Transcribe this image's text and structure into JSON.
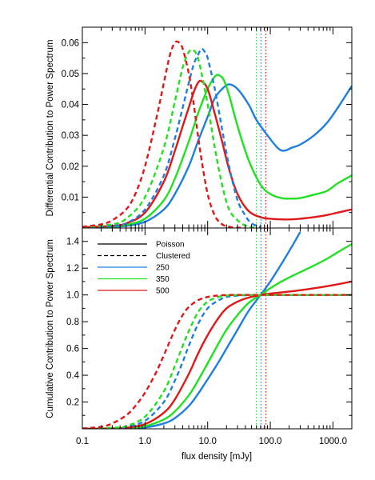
{
  "figure": {
    "xlabel": "flux density [mJy]",
    "xscale": "log",
    "xlim": [
      0.1,
      2000
    ],
    "x_ticks": [
      {
        "value": 0.1,
        "label": "0.1"
      },
      {
        "value": 1,
        "label": "1.0"
      },
      {
        "value": 10,
        "label": "10.0"
      },
      {
        "value": 100,
        "label": "100.0"
      },
      {
        "value": 1000,
        "label": "1000.0"
      }
    ],
    "vertical_lines": [
      {
        "x": 60,
        "color": "#22e022",
        "style": "dotted"
      },
      {
        "x": 71,
        "color": "#1f7fe0",
        "style": "dotted"
      },
      {
        "x": 85,
        "color": "#e01818",
        "style": "dotted"
      }
    ],
    "legend": {
      "placement": "upper-left",
      "entries": [
        {
          "label": "Poisson",
          "color": "#000000",
          "style": "solid"
        },
        {
          "label": "Clustered",
          "color": "#000000",
          "style": "dashed"
        },
        {
          "label": "250",
          "color": "#1f7fe0",
          "style": "solid"
        },
        {
          "label": "350",
          "color": "#22e022",
          "style": "solid"
        },
        {
          "label": "500",
          "color": "#e01818",
          "style": "solid"
        }
      ]
    }
  },
  "chart_data": [
    {
      "type": "line",
      "panel": "top",
      "ylabel": "Differential Contribution to Power Spectrum",
      "ylim": [
        0,
        0.065
      ],
      "y_ticks": [
        {
          "value": 0.01,
          "label": "0.01"
        },
        {
          "value": 0.02,
          "label": "0.02"
        },
        {
          "value": 0.03,
          "label": "0.03"
        },
        {
          "value": 0.04,
          "label": "0.04"
        },
        {
          "value": 0.05,
          "label": "0.05"
        },
        {
          "value": 0.06,
          "label": "0.06"
        }
      ],
      "series": [
        {
          "name": "250",
          "kind": "Poisson",
          "color": "#1f7fe0",
          "style": "solid",
          "x": [
            0.1,
            0.3,
            0.5,
            1,
            2,
            3,
            5,
            7,
            10,
            13,
            17,
            22,
            30,
            45,
            60,
            90,
            130,
            165,
            220,
            300,
            500,
            800,
            1200,
            2000
          ],
          "y": [
            0.0002,
            0.0004,
            0.0007,
            0.002,
            0.006,
            0.011,
            0.02,
            0.028,
            0.036,
            0.042,
            0.045,
            0.0465,
            0.045,
            0.04,
            0.035,
            0.03,
            0.026,
            0.025,
            0.026,
            0.027,
            0.03,
            0.034,
            0.039,
            0.046
          ]
        },
        {
          "name": "350",
          "kind": "Poisson",
          "color": "#22e022",
          "style": "solid",
          "x": [
            0.1,
            0.3,
            0.5,
            1,
            2,
            3,
            5,
            7,
            10,
            13,
            15,
            18,
            22,
            30,
            45,
            70,
            100,
            150,
            220,
            300,
            500,
            800,
            1200,
            2000
          ],
          "y": [
            0.0002,
            0.0005,
            0.001,
            0.003,
            0.009,
            0.016,
            0.028,
            0.037,
            0.045,
            0.049,
            0.0495,
            0.048,
            0.043,
            0.033,
            0.022,
            0.014,
            0.011,
            0.0097,
            0.0095,
            0.0097,
            0.0108,
            0.012,
            0.0145,
            0.017
          ]
        },
        {
          "name": "500",
          "kind": "Poisson",
          "color": "#e01818",
          "style": "solid",
          "x": [
            0.1,
            0.3,
            0.5,
            1,
            2,
            3,
            4,
            5,
            6,
            7,
            8,
            10,
            13,
            17,
            22,
            30,
            45,
            70,
            100,
            150,
            220,
            300,
            500,
            800,
            1200,
            2000
          ],
          "y": [
            0.0002,
            0.0007,
            0.0015,
            0.005,
            0.015,
            0.025,
            0.033,
            0.039,
            0.044,
            0.047,
            0.0475,
            0.045,
            0.037,
            0.028,
            0.019,
            0.011,
            0.0055,
            0.0035,
            0.003,
            0.0028,
            0.0028,
            0.003,
            0.0035,
            0.0042,
            0.005,
            0.006
          ]
        },
        {
          "name": "250",
          "kind": "Clustered",
          "color": "#1f7fe0",
          "style": "dashed",
          "x": [
            0.1,
            0.3,
            0.5,
            1,
            2,
            3,
            4,
            5,
            6,
            7,
            8,
            9,
            10,
            13,
            17,
            22,
            30,
            40,
            50,
            70
          ],
          "y": [
            0.0002,
            0.0007,
            0.0015,
            0.006,
            0.017,
            0.029,
            0.039,
            0.047,
            0.053,
            0.056,
            0.058,
            0.057,
            0.055,
            0.045,
            0.032,
            0.02,
            0.009,
            0.004,
            0.0015,
            0.0003
          ]
        },
        {
          "name": "350",
          "kind": "Clustered",
          "color": "#22e022",
          "style": "dashed",
          "x": [
            0.1,
            0.3,
            0.5,
            1,
            2,
            3,
            4,
            5,
            6,
            7,
            8,
            10,
            13,
            17,
            22,
            30,
            40,
            55
          ],
          "y": [
            0.0003,
            0.0012,
            0.003,
            0.01,
            0.026,
            0.041,
            0.052,
            0.057,
            0.0575,
            0.055,
            0.05,
            0.04,
            0.026,
            0.014,
            0.006,
            0.0025,
            0.0008,
            0.0002
          ]
        },
        {
          "name": "500",
          "kind": "Clustered",
          "color": "#e01818",
          "style": "dashed",
          "x": [
            0.1,
            0.2,
            0.3,
            0.5,
            0.7,
            1,
            1.5,
            2,
            2.5,
            3,
            3.5,
            4,
            5,
            6,
            7,
            8,
            10,
            13,
            17,
            22,
            30,
            40
          ],
          "y": [
            0.0004,
            0.0012,
            0.0025,
            0.006,
            0.011,
            0.02,
            0.035,
            0.047,
            0.056,
            0.06,
            0.06,
            0.058,
            0.05,
            0.04,
            0.03,
            0.022,
            0.011,
            0.004,
            0.0012,
            0.0004,
            0.0001,
            0.0
          ]
        }
      ]
    },
    {
      "type": "line",
      "panel": "bottom",
      "ylabel": "Cumulative Contribution to Power Spectrum",
      "ylim": [
        0,
        1.5
      ],
      "y_ticks": [
        {
          "value": 0.2,
          "label": "0.2"
        },
        {
          "value": 0.4,
          "label": "0.4"
        },
        {
          "value": 0.6,
          "label": "0.6"
        },
        {
          "value": 0.8,
          "label": "0.8"
        },
        {
          "value": 1.0,
          "label": "1.0"
        },
        {
          "value": 1.2,
          "label": "1.2"
        },
        {
          "value": 1.4,
          "label": "1.4"
        }
      ],
      "series": [
        {
          "name": "250",
          "kind": "Poisson",
          "color": "#1f7fe0",
          "style": "solid",
          "x": [
            0.1,
            0.3,
            0.5,
            1,
            2,
            3,
            5,
            7,
            10,
            15,
            20,
            30,
            45,
            70,
            100,
            150,
            220,
            300
          ],
          "y": [
            0.0,
            0.001,
            0.003,
            0.01,
            0.04,
            0.08,
            0.17,
            0.26,
            0.37,
            0.5,
            0.6,
            0.74,
            0.88,
            1.0,
            1.1,
            1.23,
            1.36,
            1.47
          ]
        },
        {
          "name": "350",
          "kind": "Poisson",
          "color": "#22e022",
          "style": "solid",
          "x": [
            0.1,
            0.3,
            0.5,
            1,
            2,
            3,
            5,
            7,
            10,
            15,
            20,
            30,
            45,
            70,
            100,
            150,
            220,
            300,
            500,
            800,
            1200,
            2000
          ],
          "y": [
            0.0,
            0.002,
            0.005,
            0.02,
            0.07,
            0.13,
            0.25,
            0.36,
            0.49,
            0.64,
            0.74,
            0.85,
            0.94,
            1.0,
            1.05,
            1.1,
            1.14,
            1.17,
            1.22,
            1.27,
            1.32,
            1.38
          ]
        },
        {
          "name": "500",
          "kind": "Poisson",
          "color": "#e01818",
          "style": "solid",
          "x": [
            0.1,
            0.3,
            0.5,
            1,
            2,
            3,
            5,
            7,
            10,
            15,
            20,
            30,
            45,
            70,
            100,
            200,
            300,
            500,
            800,
            1200,
            2000
          ],
          "y": [
            0.0,
            0.003,
            0.008,
            0.035,
            0.12,
            0.22,
            0.41,
            0.56,
            0.7,
            0.83,
            0.9,
            0.95,
            0.98,
            1.0,
            1.01,
            1.025,
            1.035,
            1.05,
            1.065,
            1.08,
            1.1
          ]
        },
        {
          "name": "250",
          "kind": "Clustered",
          "color": "#1f7fe0",
          "style": "dashed",
          "x": [
            0.1,
            0.3,
            0.5,
            1,
            2,
            3,
            4,
            5,
            7,
            10,
            15,
            20,
            30,
            45,
            70,
            100,
            200,
            500,
            2000
          ],
          "y": [
            0.0,
            0.005,
            0.015,
            0.06,
            0.2,
            0.36,
            0.5,
            0.62,
            0.78,
            0.9,
            0.96,
            0.985,
            0.995,
            0.999,
            1.0,
            1.0,
            1.0,
            1.0,
            1.0
          ]
        },
        {
          "name": "350",
          "kind": "Clustered",
          "color": "#22e022",
          "style": "dashed",
          "x": [
            0.1,
            0.3,
            0.5,
            1,
            2,
            3,
            4,
            5,
            7,
            10,
            15,
            20,
            30,
            45,
            70,
            100,
            200,
            500,
            2000
          ],
          "y": [
            0.0,
            0.008,
            0.02,
            0.09,
            0.28,
            0.47,
            0.62,
            0.73,
            0.87,
            0.95,
            0.985,
            0.995,
            0.999,
            1.0,
            1.0,
            1.0,
            1.0,
            1.0,
            1.0
          ]
        },
        {
          "name": "500",
          "kind": "Clustered",
          "color": "#e01818",
          "style": "dashed",
          "x": [
            0.1,
            0.2,
            0.3,
            0.5,
            0.7,
            1,
            1.5,
            2,
            3,
            4,
            5,
            7,
            10,
            15,
            20,
            30,
            45,
            70,
            100,
            200,
            500,
            2000
          ],
          "y": [
            0.003,
            0.015,
            0.04,
            0.1,
            0.17,
            0.27,
            0.42,
            0.55,
            0.74,
            0.85,
            0.91,
            0.96,
            0.985,
            0.996,
            0.999,
            1.0,
            1.0,
            1.0,
            1.0,
            1.0,
            1.0,
            1.0
          ]
        }
      ]
    }
  ]
}
